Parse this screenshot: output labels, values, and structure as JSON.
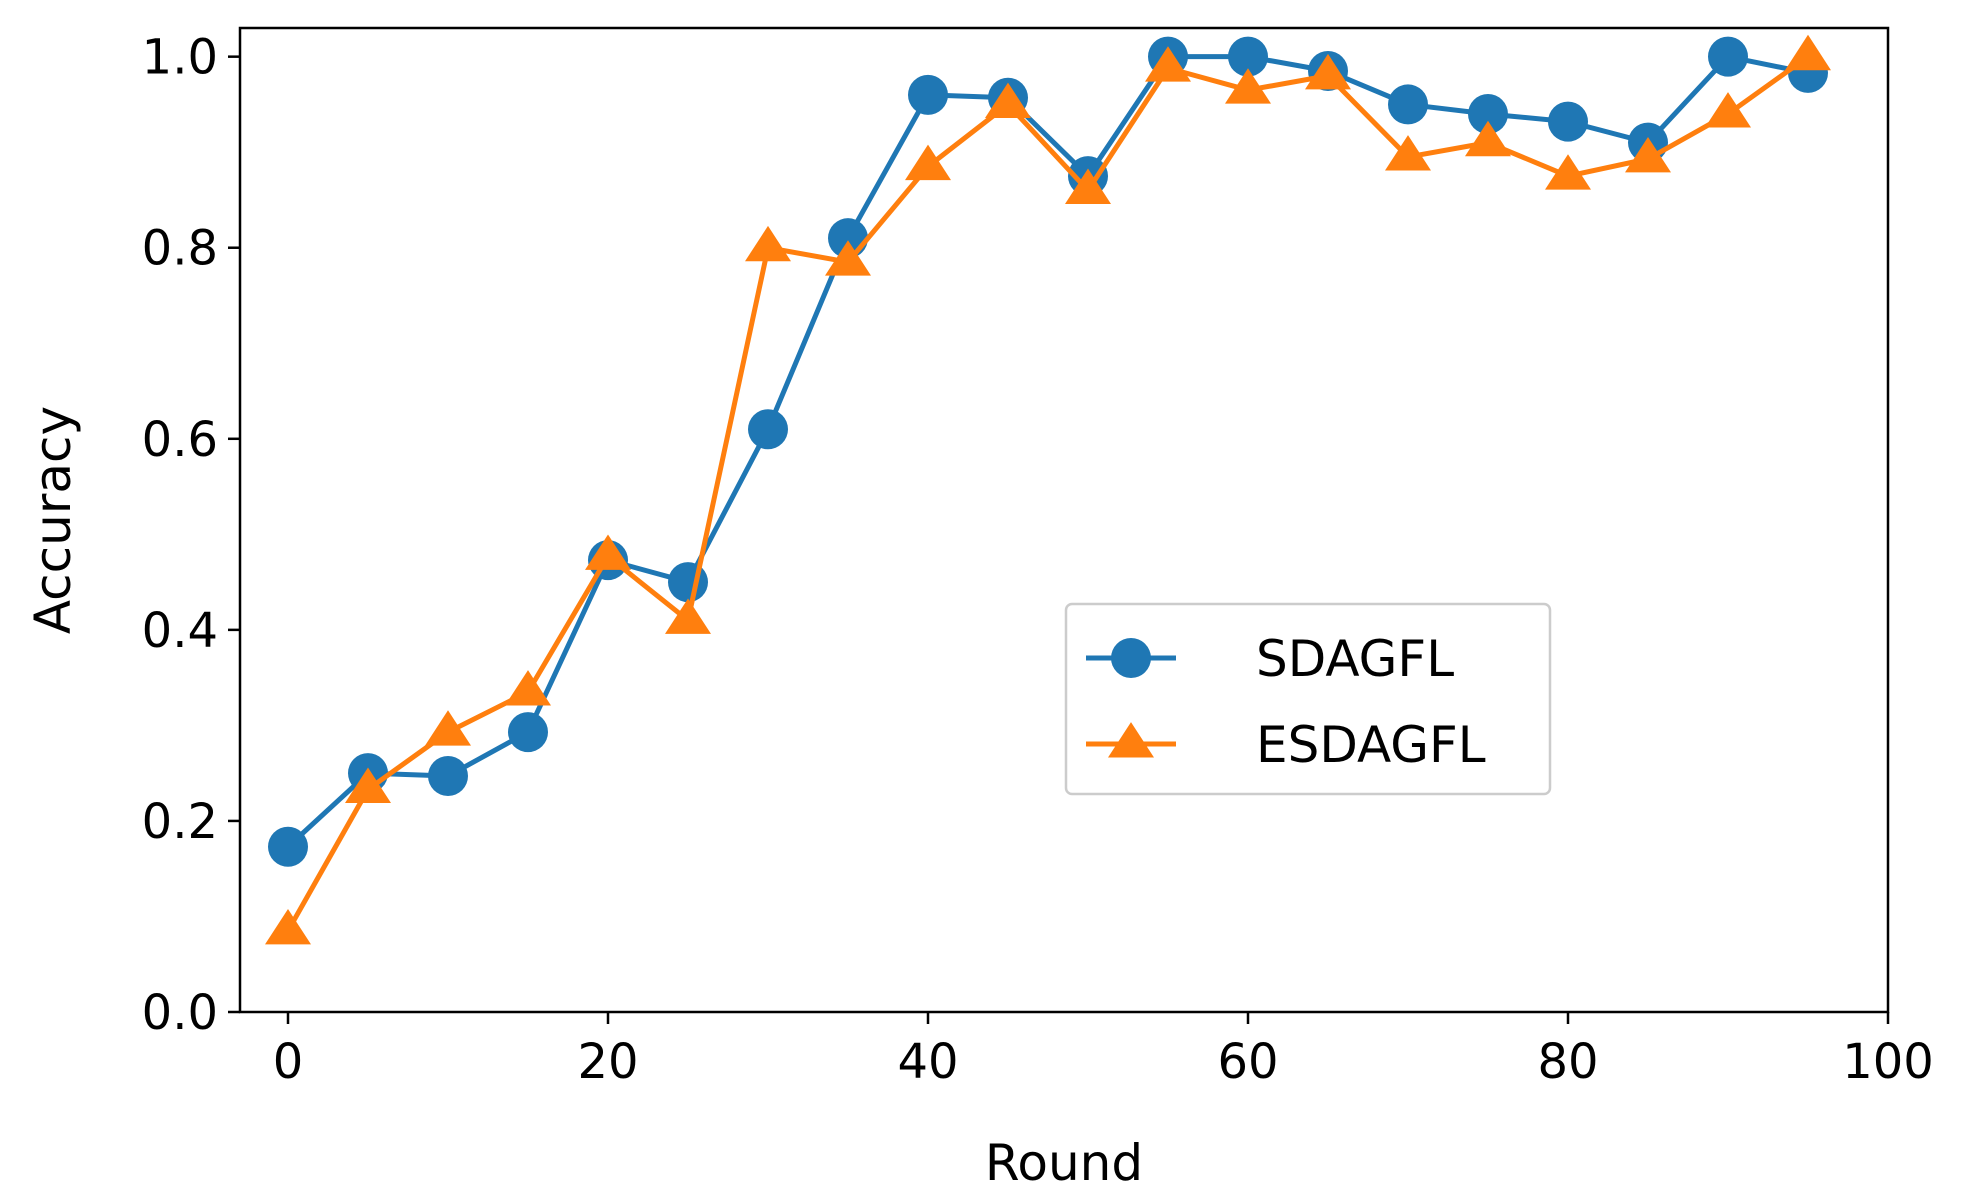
{
  "chart_data": {
    "type": "line",
    "title": "",
    "xlabel": "Round",
    "ylabel": "Accuracy",
    "xlim": [
      -3,
      100
    ],
    "ylim": [
      0,
      1.03
    ],
    "xticks": [
      0,
      20,
      40,
      60,
      80,
      100
    ],
    "xtick_labels": [
      "0",
      "20",
      "40",
      "60",
      "80",
      "100"
    ],
    "yticks": [
      0.0,
      0.2,
      0.4,
      0.6,
      0.8,
      1.0
    ],
    "ytick_labels": [
      "0.0",
      "0.2",
      "0.4",
      "0.6",
      "0.8",
      "1.0"
    ],
    "grid": false,
    "legend_position": "center-right",
    "x": [
      0,
      5,
      10,
      15,
      20,
      25,
      30,
      35,
      40,
      45,
      50,
      55,
      60,
      65,
      70,
      75,
      80,
      85,
      90,
      95
    ],
    "series": [
      {
        "name": "SDAGFL",
        "color": "#1f77b4",
        "marker": "circle",
        "values": [
          0.173,
          0.25,
          0.247,
          0.293,
          0.473,
          0.45,
          0.61,
          0.81,
          0.96,
          0.957,
          0.875,
          1.0,
          1.0,
          0.985,
          0.95,
          0.94,
          0.932,
          0.91,
          1.0,
          0.983
        ]
      },
      {
        "name": "ESDAGFL",
        "color": "#ff7f0e",
        "marker": "triangle",
        "values": [
          0.085,
          0.233,
          0.293,
          0.335,
          0.477,
          0.41,
          0.8,
          0.785,
          0.885,
          0.95,
          0.86,
          0.988,
          0.965,
          0.98,
          0.895,
          0.91,
          0.875,
          0.893,
          0.94,
          1.0
        ]
      }
    ]
  }
}
